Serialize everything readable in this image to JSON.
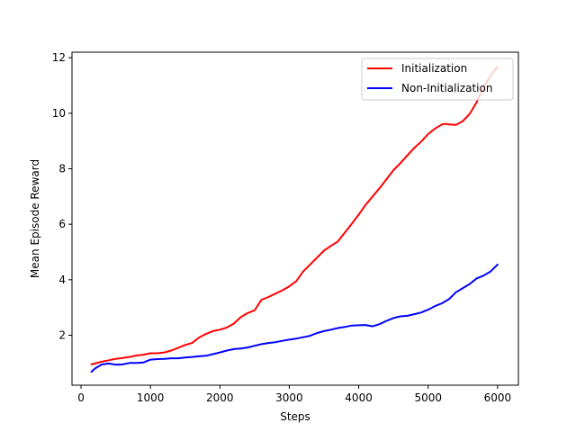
{
  "chart_data": {
    "type": "line",
    "xlabel": "Steps",
    "ylabel": "Mean Episode Reward",
    "xlim": [
      -130,
      6300
    ],
    "ylim": [
      0.2,
      12.2
    ],
    "xticks": [
      0,
      1000,
      2000,
      3000,
      4000,
      5000,
      6000
    ],
    "yticks": [
      2,
      4,
      6,
      8,
      10,
      12
    ],
    "grid": false,
    "legend_position": "top-right",
    "series": [
      {
        "name": "Initialization",
        "color": "#ff0000",
        "x": [
          150,
          300,
          400,
          500,
          600,
          700,
          800,
          900,
          1000,
          1100,
          1200,
          1300,
          1400,
          1500,
          1600,
          1700,
          1800,
          1900,
          2000,
          2100,
          2200,
          2300,
          2400,
          2500,
          2600,
          2700,
          2800,
          2900,
          3000,
          3100,
          3200,
          3300,
          3400,
          3500,
          3600,
          3700,
          3800,
          3900,
          4000,
          4100,
          4200,
          4300,
          4400,
          4500,
          4600,
          4700,
          4800,
          4900,
          5000,
          5100,
          5200,
          5250,
          5300,
          5400,
          5500,
          5600,
          5700,
          5800,
          5900,
          6000
        ],
        "values": [
          0.95,
          1.05,
          1.1,
          1.15,
          1.18,
          1.22,
          1.27,
          1.3,
          1.35,
          1.35,
          1.38,
          1.45,
          1.55,
          1.65,
          1.72,
          1.92,
          2.05,
          2.15,
          2.2,
          2.28,
          2.42,
          2.65,
          2.8,
          2.9,
          3.28,
          3.38,
          3.5,
          3.62,
          3.76,
          3.95,
          4.3,
          4.55,
          4.8,
          5.05,
          5.22,
          5.38,
          5.7,
          6.02,
          6.35,
          6.7,
          7.0,
          7.3,
          7.62,
          7.95,
          8.2,
          8.48,
          8.75,
          8.98,
          9.25,
          9.45,
          9.6,
          9.62,
          9.6,
          9.58,
          9.72,
          9.98,
          10.4,
          10.95,
          11.35,
          11.68
        ]
      },
      {
        "name": "Non-Initialization",
        "color": "#0000ff",
        "x": [
          150,
          200,
          300,
          400,
          500,
          600,
          700,
          800,
          900,
          1000,
          1100,
          1200,
          1300,
          1400,
          1500,
          1600,
          1700,
          1800,
          1900,
          2000,
          2100,
          2200,
          2300,
          2400,
          2500,
          2600,
          2700,
          2800,
          2900,
          3000,
          3100,
          3200,
          3300,
          3400,
          3500,
          3600,
          3700,
          3800,
          3900,
          4000,
          4100,
          4200,
          4300,
          4400,
          4500,
          4600,
          4700,
          4800,
          4900,
          5000,
          5100,
          5200,
          5300,
          5400,
          5500,
          5600,
          5700,
          5800,
          5900,
          6000
        ],
        "values": [
          0.68,
          0.8,
          0.95,
          0.98,
          0.94,
          0.95,
          1.0,
          1.0,
          1.02,
          1.12,
          1.14,
          1.15,
          1.17,
          1.17,
          1.2,
          1.22,
          1.24,
          1.26,
          1.32,
          1.38,
          1.45,
          1.5,
          1.52,
          1.56,
          1.62,
          1.68,
          1.72,
          1.75,
          1.8,
          1.84,
          1.88,
          1.93,
          1.98,
          2.08,
          2.15,
          2.2,
          2.26,
          2.3,
          2.35,
          2.36,
          2.37,
          2.32,
          2.4,
          2.52,
          2.62,
          2.68,
          2.7,
          2.76,
          2.82,
          2.92,
          3.05,
          3.15,
          3.3,
          3.55,
          3.7,
          3.85,
          4.05,
          4.15,
          4.3,
          4.55
        ]
      }
    ]
  }
}
